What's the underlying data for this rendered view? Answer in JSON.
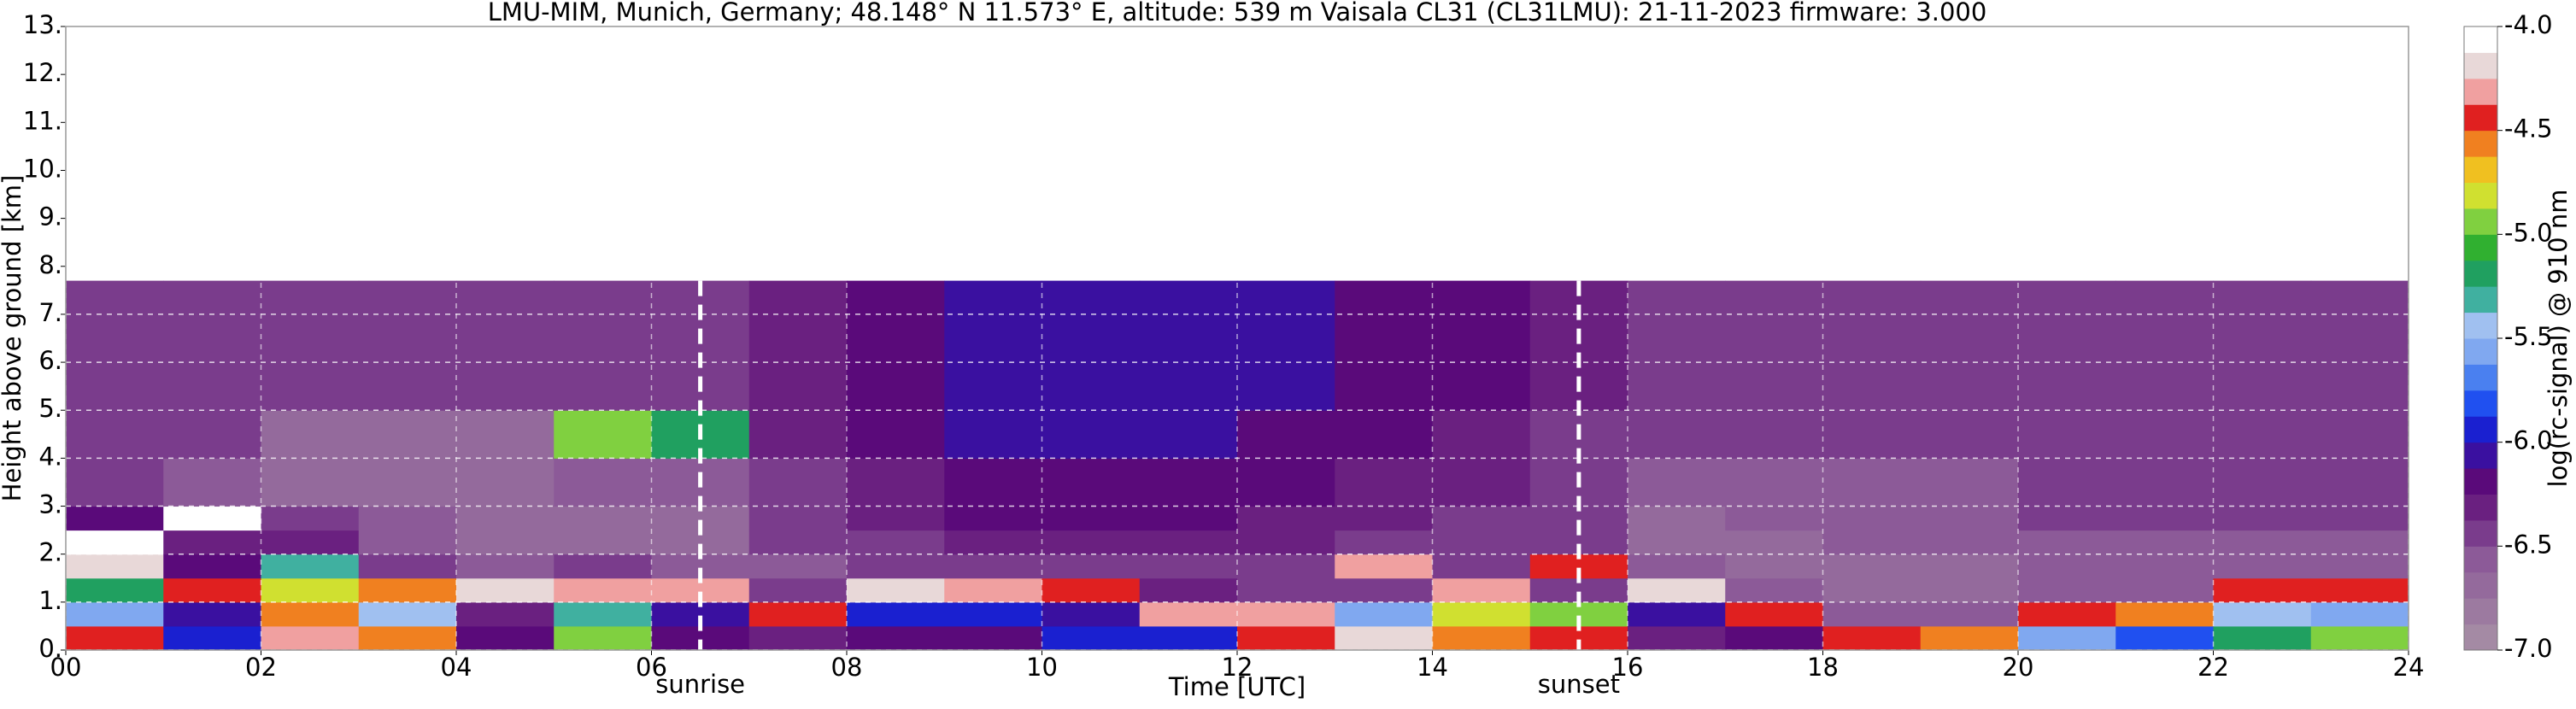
{
  "chart_data": {
    "type": "heatmap",
    "title": "LMU-MIM, Munich, Germany; 48.148° N 11.573° E, altitude: 539 m    Vaisala CL31 (CL31LMU): 21-11-2023    firmware: 3.000",
    "x_label": "Time [UTC]",
    "y_label": "Height above ground [km]",
    "colorbar_label": "log(rc-signal) @ 910 nm",
    "xlim": [
      0,
      24
    ],
    "ylim": [
      0,
      13
    ],
    "zlim": [
      -7,
      -4
    ],
    "xticks": [
      {
        "value": 0,
        "label": "00"
      },
      {
        "value": 2,
        "label": "02"
      },
      {
        "value": 4,
        "label": "04"
      },
      {
        "value": 6,
        "label": "06"
      },
      {
        "value": 8,
        "label": "08"
      },
      10,
      12,
      14,
      16,
      18,
      20,
      22,
      24
    ],
    "yticks": [
      {
        "value": 0,
        "label": "0."
      },
      {
        "value": 1,
        "label": "1."
      },
      {
        "value": 2,
        "label": "2."
      },
      {
        "value": 3,
        "label": "3."
      },
      {
        "value": 4,
        "label": "4."
      },
      {
        "value": 5,
        "label": "5."
      },
      {
        "value": 6,
        "label": "6."
      },
      {
        "value": 7,
        "label": "7."
      },
      {
        "value": 8,
        "label": "8."
      },
      {
        "value": 9,
        "label": "9."
      },
      {
        "value": 10,
        "label": "10."
      },
      {
        "value": 11,
        "label": "11."
      },
      {
        "value": 12,
        "label": "12."
      },
      {
        "value": 13,
        "label": "13."
      }
    ],
    "zticks": [
      {
        "value": -4,
        "label": "-4.0"
      },
      -4.5,
      {
        "value": -5,
        "label": "-5.0"
      },
      -5.5,
      {
        "value": -6,
        "label": "-6.0"
      },
      -6.5,
      {
        "value": -7,
        "label": "-7.0"
      }
    ],
    "grid": true,
    "colormap": [
      "#a48aa4",
      "#9c7aa0",
      "#946a9c",
      "#8c5a98",
      "#7a3c8c",
      "#6a2080",
      "#5a0a7a",
      "#3a10a0",
      "#1a20d0",
      "#2050f0",
      "#4a80f0",
      "#80a8f0",
      "#a0c0f0",
      "#40b0a0",
      "#20a060",
      "#30b030",
      "#80d040",
      "#d0e030",
      "#f0c020",
      "#f08020",
      "#e02020",
      "#f0a0a0",
      "#e8d8d8",
      "#ffffff"
    ],
    "x_edges": [
      0,
      1,
      2,
      3,
      4,
      5,
      6,
      7,
      8,
      9,
      10,
      11,
      12,
      13,
      14,
      15,
      16,
      17,
      18,
      19,
      20,
      21,
      22,
      23,
      24
    ],
    "y_edges": [
      0,
      0.5,
      1,
      1.5,
      2,
      2.5,
      3,
      4,
      5,
      6,
      7,
      7.7
    ],
    "z": [
      [
        -4.5,
        -5.6,
        -5.2,
        -4.2,
        -4.0,
        -6.2,
        -6.5,
        -6.5,
        -6.4,
        -6.4,
        -6.4
      ],
      [
        -6.0,
        -6.1,
        -4.4,
        -6.2,
        -6.3,
        -4.1,
        -6.6,
        -6.4,
        -6.4,
        -6.4,
        -6.4
      ],
      [
        -4.3,
        -4.6,
        -4.8,
        -5.3,
        -6.3,
        -6.5,
        -6.7,
        -6.7,
        -6.5,
        -6.4,
        -6.4
      ],
      [
        -4.6,
        -5.4,
        -4.6,
        -6.4,
        -6.6,
        -6.6,
        -6.7,
        -6.7,
        -6.5,
        -6.4,
        -6.4
      ],
      [
        -6.2,
        -6.3,
        -4.2,
        -6.6,
        -6.7,
        -6.7,
        -6.7,
        -6.7,
        -6.5,
        -6.4,
        -6.4
      ],
      [
        -4.9,
        -5.3,
        -4.3,
        -6.5,
        -6.7,
        -6.7,
        -6.6,
        -5.0,
        -6.5,
        -6.4,
        -6.4
      ],
      [
        -6.2,
        -6.1,
        -4.3,
        -6.6,
        -6.7,
        -6.7,
        -6.6,
        -5.2,
        -6.5,
        -6.4,
        -6.4
      ],
      [
        -6.3,
        -4.4,
        -6.4,
        -6.6,
        -6.5,
        -6.4,
        -6.4,
        -6.3,
        -6.3,
        -6.3,
        -6.3
      ],
      [
        -6.2,
        -6.0,
        -4.2,
        -6.5,
        -6.4,
        -6.3,
        -6.3,
        -6.2,
        -6.2,
        -6.2,
        -6.2
      ],
      [
        -6.2,
        -6.0,
        -4.3,
        -6.5,
        -6.3,
        -6.2,
        -6.2,
        -6.1,
        -6.1,
        -6.1,
        -6.1
      ],
      [
        -6.0,
        -6.1,
        -4.4,
        -6.4,
        -6.3,
        -6.2,
        -6.2,
        -6.1,
        -6.1,
        -6.1,
        -6.1
      ],
      [
        -6.0,
        -4.3,
        -6.3,
        -6.4,
        -6.3,
        -6.2,
        -6.2,
        -6.1,
        -6.1,
        -6.1,
        -6.1
      ],
      [
        -4.5,
        -4.3,
        -6.4,
        -6.4,
        -6.3,
        -6.3,
        -6.2,
        -6.2,
        -6.1,
        -6.1,
        -6.1
      ],
      [
        -4.2,
        -5.6,
        -6.4,
        -4.3,
        -6.4,
        -6.3,
        -6.3,
        -6.2,
        -6.2,
        -6.2,
        -6.2
      ],
      [
        -4.6,
        -4.8,
        -4.3,
        -6.5,
        -6.4,
        -6.4,
        -6.3,
        -6.3,
        -6.2,
        -6.2,
        -6.2
      ],
      [
        -4.4,
        -5.0,
        -6.4,
        -4.4,
        -6.5,
        -6.5,
        -6.5,
        -6.4,
        -6.3,
        -6.3,
        -6.3
      ],
      [
        -6.3,
        -6.1,
        -4.2,
        -6.6,
        -6.7,
        -6.7,
        -6.6,
        -6.5,
        -6.4,
        -6.4,
        -6.4
      ],
      [
        -6.2,
        -4.4,
        -6.6,
        -6.7,
        -6.7,
        -6.6,
        -6.6,
        -6.5,
        -6.4,
        -6.4,
        -6.4
      ],
      [
        -4.4,
        -6.6,
        -6.7,
        -6.7,
        -6.6,
        -6.6,
        -6.6,
        -6.5,
        -6.4,
        -6.4,
        -6.4
      ],
      [
        -4.6,
        -6.6,
        -6.7,
        -6.7,
        -6.6,
        -6.6,
        -6.6,
        -6.5,
        -6.4,
        -6.4,
        -6.4
      ],
      [
        -5.6,
        -4.5,
        -6.6,
        -6.6,
        -6.6,
        -6.5,
        -6.5,
        -6.5,
        -6.4,
        -6.4,
        -6.4
      ],
      [
        -5.8,
        -4.6,
        -6.6,
        -6.6,
        -6.6,
        -6.5,
        -6.5,
        -6.5,
        -6.4,
        -6.4,
        -6.4
      ],
      [
        -5.2,
        -5.5,
        -4.4,
        -6.6,
        -6.6,
        -6.5,
        -6.5,
        -6.5,
        -6.4,
        -6.4,
        -6.4
      ],
      [
        -5.0,
        -5.6,
        -4.5,
        -6.6,
        -6.6,
        -6.5,
        -6.5,
        -6.5,
        -6.4,
        -6.4,
        -6.4
      ]
    ],
    "annotations": [
      {
        "text": "sunrise",
        "x": 6.5
      },
      {
        "text": "sunset",
        "x": 15.5
      }
    ]
  }
}
